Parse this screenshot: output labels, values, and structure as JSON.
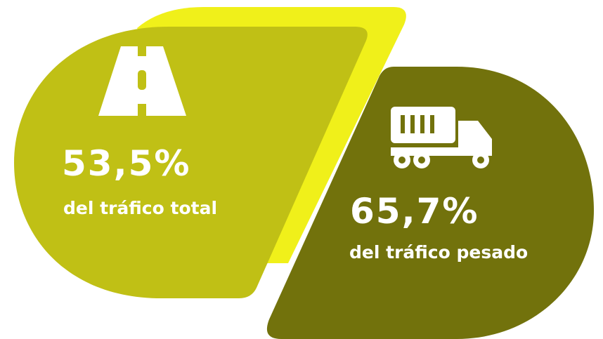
{
  "stats": [
    {
      "value": "53,5%",
      "label": "del tráfico total"
    },
    {
      "value": "65,7%",
      "label": "del tráfico pesado"
    }
  ]
}
